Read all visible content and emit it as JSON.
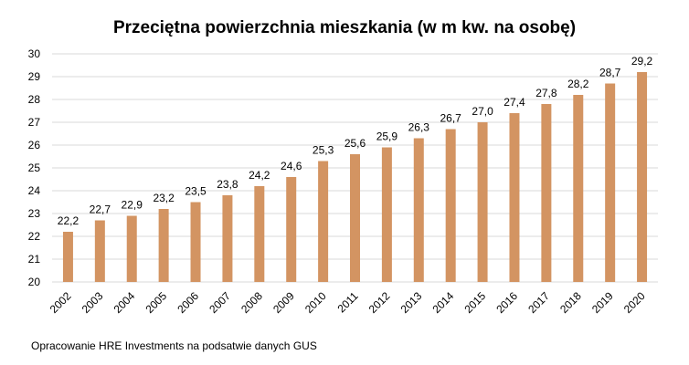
{
  "chart_data": {
    "type": "bar",
    "title": "Przeciętna powierzchnia mieszkania (w m kw. na osobę)",
    "categories": [
      "2002",
      "2003",
      "2004",
      "2005",
      "2006",
      "2007",
      "2008",
      "2009",
      "2010",
      "2011",
      "2012",
      "2013",
      "2014",
      "2015",
      "2016",
      "2017",
      "2018",
      "2019",
      "2020"
    ],
    "values": [
      22.2,
      22.7,
      22.9,
      23.2,
      23.5,
      23.8,
      24.2,
      24.6,
      25.3,
      25.6,
      25.9,
      26.3,
      26.7,
      27.0,
      27.4,
      27.8,
      28.2,
      28.7,
      29.2
    ],
    "data_labels": [
      "22,2",
      "22,7",
      "22,9",
      "23,2",
      "23,5",
      "23,8",
      "24,2",
      "24,6",
      "25,3",
      "25,6",
      "25,9",
      "26,3",
      "26,7",
      "27,0",
      "27,4",
      "27,8",
      "28,2",
      "28,7",
      "29,2"
    ],
    "ylim": [
      20,
      30
    ],
    "yticks": [
      20,
      21,
      22,
      23,
      24,
      25,
      26,
      27,
      28,
      29,
      30
    ],
    "grid": true,
    "legend": "none",
    "bar_color": "#D39462",
    "grid_color": "#D9D9D9",
    "xlabel": "",
    "ylabel": ""
  },
  "source_note": "Opracowanie HRE Investments na podsatwie danych GUS"
}
